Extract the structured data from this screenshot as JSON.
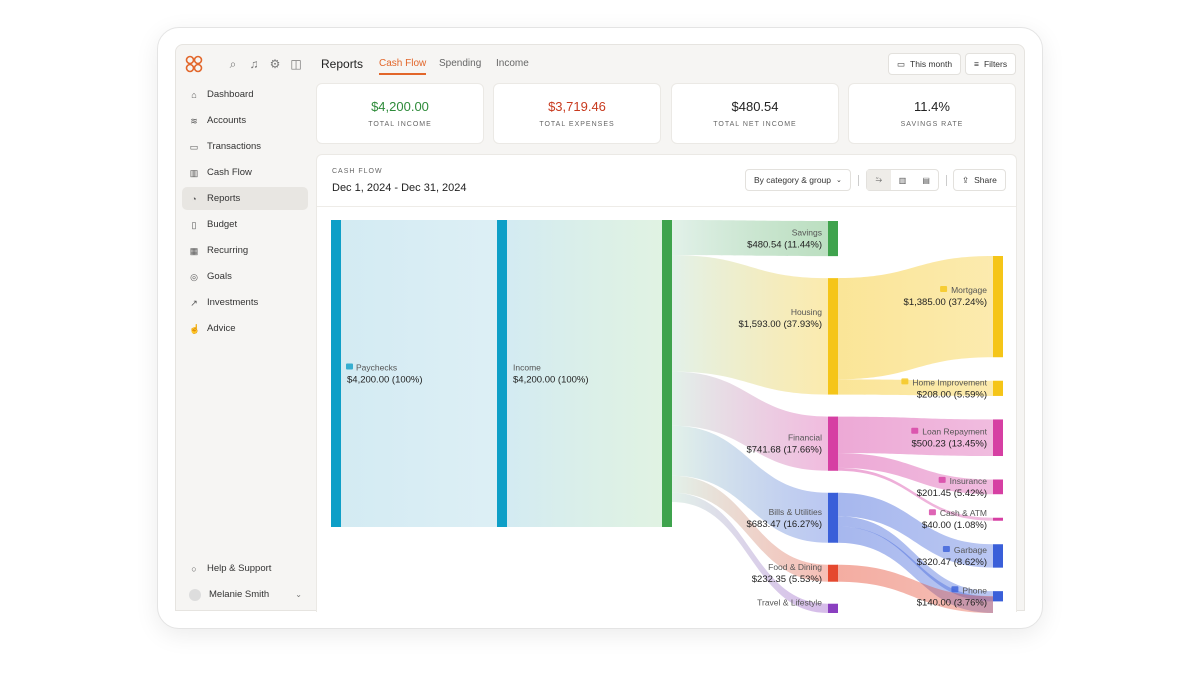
{
  "header": {
    "title": "Reports",
    "tabs": [
      {
        "label": "Cash Flow",
        "active": true
      },
      {
        "label": "Spending"
      },
      {
        "label": "Income"
      }
    ],
    "period_button": "This month",
    "filters_button": "Filters",
    "icons": [
      "search-icon",
      "bell-icon",
      "gear-icon",
      "panel-icon"
    ]
  },
  "sidebar": {
    "items": [
      {
        "label": "Dashboard",
        "icon": "home-icon"
      },
      {
        "label": "Accounts",
        "icon": "layers-icon"
      },
      {
        "label": "Transactions",
        "icon": "card-icon"
      },
      {
        "label": "Cash Flow",
        "icon": "bar-chart-icon"
      },
      {
        "label": "Reports",
        "icon": "pie-chart-icon",
        "active": true
      },
      {
        "label": "Budget",
        "icon": "map-icon"
      },
      {
        "label": "Recurring",
        "icon": "calendar-icon"
      },
      {
        "label": "Goals",
        "icon": "target-icon"
      },
      {
        "label": "Investments",
        "icon": "trend-icon"
      },
      {
        "label": "Advice",
        "icon": "thumbs-up-icon"
      }
    ],
    "help": "Help & Support",
    "user": "Melanie Smith"
  },
  "summary": [
    {
      "value": "$4,200.00",
      "label": "TOTAL INCOME",
      "color": "#2e8b3a"
    },
    {
      "value": "$3,719.46",
      "label": "TOTAL EXPENSES",
      "color": "#c83a1e"
    },
    {
      "value": "$480.54",
      "label": "TOTAL NET INCOME",
      "color": "#222222"
    },
    {
      "value": "11.4%",
      "label": "SAVINGS RATE",
      "color": "#222222"
    }
  ],
  "chart": {
    "kicker": "CASH FLOW",
    "range": "Dec 1, 2024 - Dec 31, 2024",
    "grouping": "By category & group",
    "share": "Share",
    "view_modes": [
      "sankey-icon",
      "bar-icon",
      "stacked-bar-icon"
    ]
  },
  "chart_data": {
    "type": "sankey",
    "total": 4200,
    "nodes": [
      {
        "id": "paychecks",
        "label": "Paychecks",
        "amount": "$4,200.00 (100%)",
        "value": 4200,
        "col": 0,
        "color": "#0e9fc7",
        "icon": "money-icon"
      },
      {
        "id": "income",
        "label": "Income",
        "amount": "$4,200.00 (100%)",
        "value": 4200,
        "col": 1,
        "color": "#0e9fc7"
      },
      {
        "id": "hub",
        "label": "",
        "amount": "",
        "value": 4200,
        "col": 2,
        "color": "#3fa34d"
      },
      {
        "id": "savings",
        "label": "Savings",
        "amount": "$480.54 (11.44%)",
        "value": 480.54,
        "col": 3,
        "color": "#3fa34d"
      },
      {
        "id": "housing",
        "label": "Housing",
        "amount": "$1,593.00 (37.93%)",
        "value": 1593,
        "col": 3,
        "color": "#f5c518"
      },
      {
        "id": "financial",
        "label": "Financial",
        "amount": "$741.68 (17.66%)",
        "value": 741.68,
        "col": 3,
        "color": "#d63fa3"
      },
      {
        "id": "bills",
        "label": "Bills & Utilities",
        "amount": "$683.47 (16.27%)",
        "value": 683.47,
        "col": 3,
        "color": "#3a5fd9"
      },
      {
        "id": "food",
        "label": "Food & Dining",
        "amount": "$232.35 (5.53%)",
        "value": 232.35,
        "col": 3,
        "color": "#e5482f"
      },
      {
        "id": "travel",
        "label": "Travel & Lifestyle",
        "amount": "",
        "col": 3,
        "color": "#8a3fc0"
      },
      {
        "id": "mortgage",
        "label": "Mortgage",
        "amount": "$1,385.00 (37.24%)",
        "value": 1385,
        "col": 4,
        "parent": "housing",
        "color": "#f5c518",
        "icon": "house-icon"
      },
      {
        "id": "homeimp",
        "label": "Home Improvement",
        "amount": "$208.00 (5.59%)",
        "value": 208,
        "col": 4,
        "parent": "housing",
        "color": "#f5c518",
        "icon": "hammer-icon"
      },
      {
        "id": "loan",
        "label": "Loan Repayment",
        "amount": "$500.23 (13.45%)",
        "value": 500.23,
        "col": 4,
        "parent": "financial",
        "color": "#d63fa3",
        "icon": "moneybag-icon"
      },
      {
        "id": "insurance",
        "label": "Insurance",
        "amount": "$201.45 (5.42%)",
        "value": 201.45,
        "col": 4,
        "parent": "financial",
        "color": "#d63fa3",
        "icon": "umbrella-icon"
      },
      {
        "id": "cash",
        "label": "Cash & ATM",
        "amount": "$40.00 (1.08%)",
        "value": 40,
        "col": 4,
        "parent": "financial",
        "color": "#d63fa3",
        "icon": "credit-card-icon"
      },
      {
        "id": "garbage",
        "label": "Garbage",
        "amount": "$320.47 (8.62%)",
        "value": 320.47,
        "col": 4,
        "parent": "bills",
        "color": "#3a5fd9",
        "icon": "trash-icon"
      },
      {
        "id": "phone",
        "label": "Phone",
        "amount": "$140.00 (3.76%)",
        "value": 140,
        "col": 4,
        "parent": "bills",
        "color": "#3a5fd9",
        "icon": "phone-icon"
      }
    ]
  }
}
